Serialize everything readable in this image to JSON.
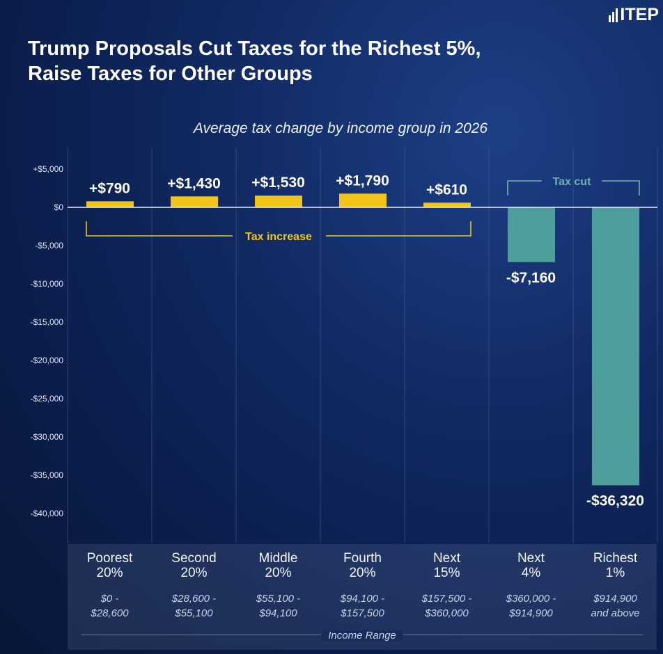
{
  "logo": {
    "text": "ITEP"
  },
  "title": {
    "line1": "Trump Proposals Cut Taxes for the Richest 5%,",
    "line2": "Raise Taxes for Other Groups"
  },
  "colors": {
    "increase": "#f0c419",
    "cut": "#4e9e9c",
    "axis": "#e8eef9",
    "grid": "#4a6399",
    "cut_bracket": "#6fb3b1"
  },
  "chart_data": {
    "type": "bar",
    "title": "Average tax change by income group in 2026",
    "categories": [
      "Poorest 20%",
      "Second 20%",
      "Middle 20%",
      "Fourth 20%",
      "Next 15%",
      "Next 4%",
      "Richest 1%"
    ],
    "values": [
      790,
      1430,
      1530,
      1790,
      610,
      -7160,
      -36320
    ],
    "value_labels": [
      "+$790",
      "+$1,430",
      "+$1,530",
      "+$1,790",
      "+$610",
      "-$7,160",
      "-$36,320"
    ],
    "yticks": [
      5000,
      0,
      -5000,
      -10000,
      -15000,
      -20000,
      -25000,
      -30000,
      -35000,
      -40000
    ],
    "ytick_labels": [
      "+$5,000",
      "$0",
      "-$5,000",
      "-$10,000",
      "-$15,000",
      "-$20,000",
      "-$25,000",
      "-$30,000",
      "-$35,000",
      "-$40,000"
    ],
    "ylim": [
      -41500,
      5000
    ],
    "annotations": {
      "increase": "Tax increase",
      "cut": "Tax cut"
    },
    "xlabel": "Income Range"
  },
  "groups": [
    {
      "name1": "Poorest",
      "name2": "20%",
      "range1": "$0 -",
      "range2": "$28,600"
    },
    {
      "name1": "Second",
      "name2": "20%",
      "range1": "$28,600 -",
      "range2": "$55,100"
    },
    {
      "name1": "Middle",
      "name2": "20%",
      "range1": "$55,100 -",
      "range2": "$94,100"
    },
    {
      "name1": "Fourth",
      "name2": "20%",
      "range1": "$94,100 -",
      "range2": "$157,500"
    },
    {
      "name1": "Next",
      "name2": "15%",
      "range1": "$157,500 -",
      "range2": "$360,000"
    },
    {
      "name1": "Next",
      "name2": "4%",
      "range1": "$360,000 -",
      "range2": "$914,900"
    },
    {
      "name1": "Richest",
      "name2": "1%",
      "range1": "$914,900",
      "range2": "and above"
    }
  ]
}
